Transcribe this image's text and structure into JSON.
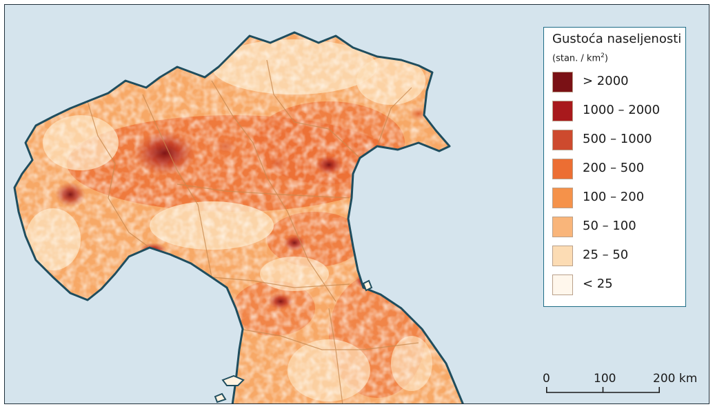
{
  "legend": {
    "title": "Gustoća naseljenosti",
    "unit_prefix": "(stan. / km",
    "unit_exp": "2",
    "unit_suffix": ")",
    "classes": [
      {
        "label": "> 2000",
        "color": "#7a1115"
      },
      {
        "label": "1000 – 2000",
        "color": "#a8191c"
      },
      {
        "label": "500 – 1000",
        "color": "#cd4a2e"
      },
      {
        "label": "200 – 500",
        "color": "#ec6e33"
      },
      {
        "label": "100 – 200",
        "color": "#f5924a"
      },
      {
        "label": "50 – 100",
        "color": "#f9b57a"
      },
      {
        "label": "25 – 50",
        "color": "#fcdcb4"
      },
      {
        "label": "< 25",
        "color": "#fff7ec"
      }
    ]
  },
  "scale": {
    "ticks": [
      "0",
      "100",
      "200 km"
    ]
  },
  "colors": {
    "sea": "#d5e4ed",
    "coastline": "#1f4d5e",
    "borders": "#c88a50"
  }
}
